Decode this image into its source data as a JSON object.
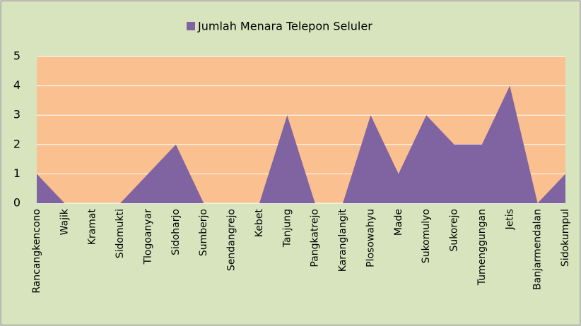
{
  "chart_data": {
    "type": "area",
    "categories": [
      "Rancangkencono",
      "Wajik",
      "Kramat",
      "Sidomukti",
      "Tlogoanyar",
      "Sidoharjo",
      "Sumberjo",
      "Sendangrejo",
      "Kebet",
      "Tanjung",
      "Pangkatrejo",
      "Karanglangit",
      "Plosowahyu",
      "Made",
      "Sukomulyo",
      "Sukorejo",
      "Tumenggungan",
      "Jetis",
      "Banjarmendalan",
      "Sidokumpul"
    ],
    "series": [
      {
        "name": "Jumlah Menara Telepon Seluler",
        "color": "#8064a2",
        "values": [
          1,
          0,
          0,
          0,
          1,
          2,
          0,
          0,
          0,
          3,
          0,
          0,
          3,
          1,
          3,
          2,
          2,
          4,
          0,
          1
        ]
      }
    ],
    "ylim": [
      0,
      5
    ],
    "yticks": [
      0,
      1,
      2,
      3,
      4,
      5
    ],
    "grid": true,
    "legend": "top"
  }
}
